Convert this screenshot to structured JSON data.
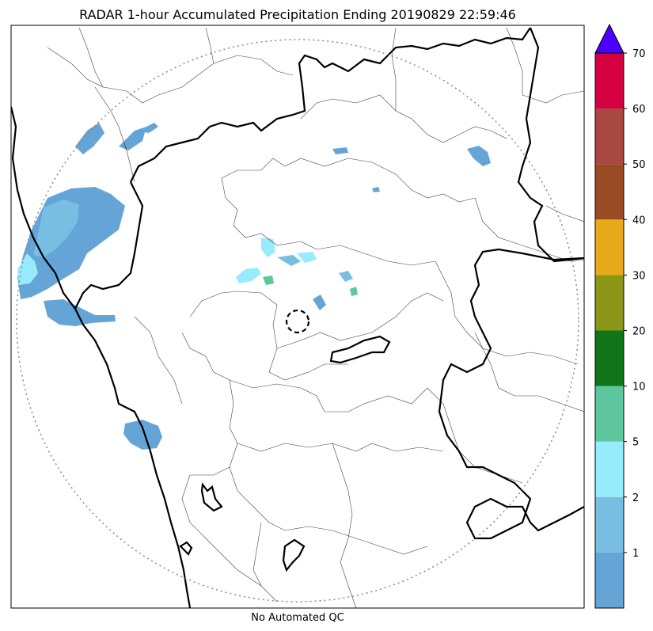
{
  "title": "RADAR 1-hour Accumulated Precipitation Ending 20190829 22:59:46",
  "caption": "No Automated QC",
  "colorbar": {
    "labels": [
      "1",
      "2",
      "5",
      "10",
      "20",
      "30",
      "40",
      "50",
      "60",
      "70"
    ],
    "colors": [
      "#64a4d6",
      "#78bde2",
      "#96ecfc",
      "#5dc69c",
      "#0f7518",
      "#8b9617",
      "#e8a91a",
      "#9b4b24",
      "#a84840",
      "#d4003f"
    ],
    "extend_color": "#4c00ff"
  },
  "colors": {
    "state_border": "#000000",
    "district_border": "#000000",
    "range_ring": "#888888",
    "rain_light": "#64a4d6",
    "rain_mid": "#78bde2",
    "rain_cyan": "#96ecfc",
    "rain_green": "#5dc69c"
  }
}
